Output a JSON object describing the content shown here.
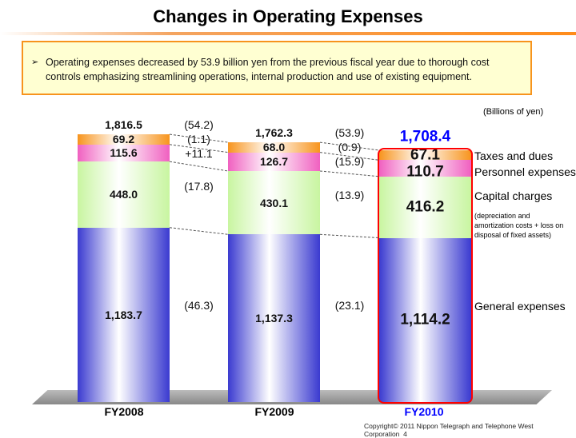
{
  "title": "Changes in Operating Expenses",
  "note": "Operating expenses decreased by 53.9 billion yen from the previous fiscal year due to thorough cost controls emphasizing streamlining operations, internal production and use of existing equipment.",
  "chart_data": {
    "type": "bar",
    "stacked": true,
    "unit_label": "(Billions of yen)",
    "categories": [
      "FY2008",
      "FY2009",
      "FY2010"
    ],
    "series": [
      {
        "name": "General expenses",
        "values": [
          1183.7,
          1137.3,
          1114.2
        ],
        "color": "#3a3ad0",
        "labels": [
          "1,183.7",
          "1,137.3",
          "1,114.2"
        ]
      },
      {
        "name": "Capital charges",
        "values": [
          448.0,
          430.1,
          416.2
        ],
        "color": "#c8f5a0",
        "labels": [
          "448.0",
          "430.1",
          "416.2"
        ]
      },
      {
        "name": "Personnel expenses",
        "values": [
          115.6,
          126.7,
          110.7
        ],
        "color": "#f060c0",
        "labels": [
          "115.6",
          "126.7",
          "110.7"
        ]
      },
      {
        "name": "Taxes and dues",
        "values": [
          69.2,
          68.0,
          67.1
        ],
        "color": "#f7941d",
        "labels": [
          "69.2",
          "68.0",
          "67.1"
        ]
      }
    ],
    "totals": [
      "1,816.5",
      "1,762.3",
      "1,708.4"
    ],
    "changes": [
      {
        "total": "(54.2)",
        "taxes": "(1.1)",
        "personnel": "+11.1",
        "capital": "(17.8)",
        "general": "(46.3)"
      },
      {
        "total": "(53.9)",
        "taxes": "(0.9)",
        "personnel": "(15.9)",
        "capital": "(13.9)",
        "general": "(23.1)"
      }
    ],
    "capital_note": "(depreciation and amortization costs + loss on disposal of fixed assets)",
    "highlight_color": "#ff0000",
    "highlight_total_color": "#0000ff"
  },
  "footer": "Copyright© 2011 Nippon Telegraph and Telephone West Corporation",
  "page": "4"
}
